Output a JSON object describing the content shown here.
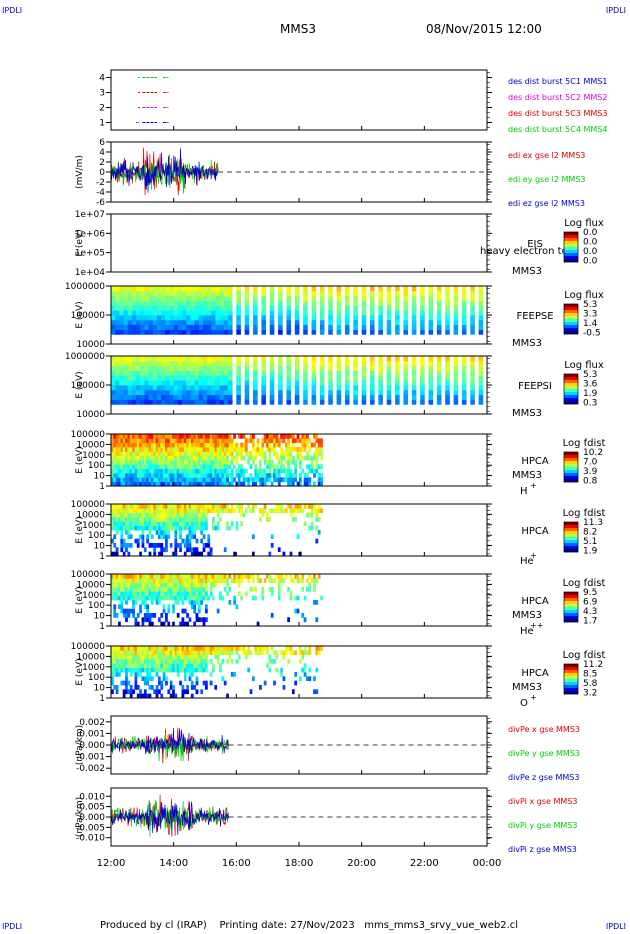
{
  "header": {
    "corner_logo": "IPDLI",
    "spacecraft": "MMS3",
    "datetime": "08/Nov/2015 12:00"
  },
  "footer": {
    "produced_by": "Produced by cl (IRAP)",
    "printing_date": "Printing date: 27/Nov/2023",
    "filename": "mms_mms3_srvy_vue_web2.cl"
  },
  "colors": {
    "mms1": "#0000cc",
    "mms2": "#dd00dd",
    "mms3": "#dd0000",
    "mms4": "#00cc00",
    "x": "#dd0000",
    "y": "#00cc00",
    "z": "#0000cc"
  },
  "time_axis": {
    "start": "2015-11-08T12:00",
    "end": "2015-11-09T00:00",
    "ticks": [
      "12:00",
      "14:00",
      "16:00",
      "18:00",
      "20:00",
      "22:00",
      "00:00"
    ]
  },
  "chart_data": [
    {
      "type": "line",
      "panel": "des dist burst",
      "ylabel": "",
      "ylim": [
        0.5,
        4.5
      ],
      "yticks": [
        "1",
        "2",
        "3",
        "4"
      ],
      "legend": [
        "des dist burst 5C1 MMS1",
        "des dist burst 5C2 MMS2",
        "des dist burst 5C3 MMS3",
        "des dist burst 5C4 MMS4"
      ],
      "legend_colors": [
        "#0000cc",
        "#dd00dd",
        "#dd0000",
        "#00cc00"
      ],
      "series": [
        {
          "name": "des dist burst 5C1 MMS1",
          "level": 1,
          "intervals": [
            [
              "12:48",
              "12:50"
            ],
            [
              "12:52",
              "12:54"
            ],
            [
              "13:00",
              "13:28"
            ],
            [
              "13:40",
              "13:50"
            ]
          ]
        },
        {
          "name": "des dist burst 5C2 MMS2",
          "level": 2,
          "intervals": [
            [
              "12:52",
              "12:56"
            ],
            [
              "13:00",
              "13:28"
            ],
            [
              "13:40",
              "13:50"
            ]
          ]
        },
        {
          "name": "des dist burst 5C3 MMS3",
          "level": 3,
          "intervals": [
            [
              "12:52",
              "12:56"
            ],
            [
              "13:00",
              "13:28"
            ],
            [
              "13:40",
              "13:50"
            ]
          ]
        },
        {
          "name": "des dist burst 5C4 MMS4",
          "level": 4,
          "intervals": [
            [
              "12:52",
              "12:56"
            ],
            [
              "13:00",
              "13:28"
            ],
            [
              "13:40",
              "13:50"
            ]
          ]
        }
      ]
    },
    {
      "type": "line",
      "panel": "edi e gse",
      "ylabel": "(mV/m)",
      "ylim": [
        -6,
        6
      ],
      "yticks": [
        "-6",
        "-4",
        "-2",
        "0",
        "2",
        "4",
        "6"
      ],
      "legend": [
        "edi ex gse l2 MMS3",
        "edi ey gse l2 MMS3",
        "edi ez gse l2 MMS3"
      ],
      "legend_colors": [
        "#dd0000",
        "#00cc00",
        "#0000cc"
      ],
      "data_span": [
        "12:00",
        "15:25"
      ],
      "amplitude": 5.5
    },
    {
      "type": "heatmap",
      "panel": "EIS",
      "ylabel": "E (eV)",
      "yscale": "log",
      "yticks": [
        "1e+04",
        "1e+05",
        "1e+06",
        "1e+07"
      ],
      "instrument": "EIS",
      "spacecraft": "MMS3",
      "overlay_text": "heavy electron to",
      "cbar_title": "Log flux",
      "cbar_ticks": [
        "0.0",
        "0.0",
        "0.0",
        "0.0"
      ],
      "empty": true
    },
    {
      "type": "heatmap",
      "panel": "FEEPSE",
      "ylabel": "E (eV)",
      "yscale": "log",
      "yticks": [
        "10000",
        "100000",
        "1000000"
      ],
      "instrument": "FEEPSE",
      "spacecraft": "MMS3",
      "cbar_title": "Log flux",
      "cbar_ticks": [
        "5.3",
        "3.3",
        "1.4",
        "-0.5"
      ],
      "data_span": [
        "12:00",
        "00:00"
      ]
    },
    {
      "type": "heatmap",
      "panel": "FEEPSI",
      "ylabel": "E (eV)",
      "yscale": "log",
      "yticks": [
        "10000",
        "100000",
        "1000000"
      ],
      "instrument": "FEEPSI",
      "spacecraft": "MMS3",
      "cbar_title": "Log flux",
      "cbar_ticks": [
        "5.3",
        "3.6",
        "1.9",
        "0.3"
      ],
      "data_span": [
        "12:00",
        "00:00"
      ]
    },
    {
      "type": "heatmap",
      "panel": "HPCA H+",
      "ylabel": "E (eV)",
      "yscale": "log",
      "yticks": [
        "1",
        "10",
        "100",
        "1000",
        "10000",
        "100000"
      ],
      "instrument": "HPCA",
      "spacecraft": "MMS3",
      "species": "H",
      "charge": "+",
      "cbar_title": "Log fdist",
      "cbar_ticks": [
        "10.2",
        "7.0",
        "3.9",
        "0.8"
      ],
      "data_span": [
        "12:00",
        "18:45"
      ]
    },
    {
      "type": "heatmap",
      "panel": "HPCA He+",
      "ylabel": "E (eV)",
      "yscale": "log",
      "yticks": [
        "1",
        "10",
        "100",
        "1000",
        "10000",
        "100000"
      ],
      "instrument": "HPCA",
      "spacecraft": "",
      "species": "He",
      "charge": "+",
      "cbar_title": "Log fdist",
      "cbar_ticks": [
        "11.3",
        "8.2",
        "5.1",
        "1.9"
      ],
      "data_span": [
        "12:00",
        "18:45"
      ]
    },
    {
      "type": "heatmap",
      "panel": "HPCA He++",
      "ylabel": "E (eV)",
      "yscale": "log",
      "yticks": [
        "1",
        "10",
        "100",
        "1000",
        "10000",
        "100000"
      ],
      "instrument": "HPCA",
      "spacecraft": "MMS3",
      "species": "He",
      "charge": "++",
      "cbar_title": "Log fdist",
      "cbar_ticks": [
        "9.5",
        "6.9",
        "4.3",
        "1.7"
      ],
      "data_span": [
        "12:00",
        "18:45"
      ]
    },
    {
      "type": "heatmap",
      "panel": "HPCA O+",
      "ylabel": "E (eV)",
      "yscale": "log",
      "yticks": [
        "1",
        "10",
        "100",
        "1000",
        "10000",
        "100000"
      ],
      "instrument": "HPCA",
      "spacecraft": "MMS3",
      "species": "O",
      "charge": "+",
      "cbar_title": "Log fdist",
      "cbar_ticks": [
        "11.2",
        "8.5",
        "5.8",
        "3.2"
      ],
      "data_span": [
        "12:00",
        "18:45"
      ]
    },
    {
      "type": "line",
      "panel": "divPe",
      "ylabel": "(nPa/km)",
      "ylim": [
        -0.0025,
        0.0025
      ],
      "yticks": [
        "-0.002",
        "-0.001",
        "0.000",
        "0.001",
        "0.002"
      ],
      "legend": [
        "divPe x gse MMS3",
        "divPe y gse MMS3",
        "divPe z gse MMS3"
      ],
      "legend_colors": [
        "#dd0000",
        "#00cc00",
        "#0000cc"
      ],
      "data_span": [
        "12:00",
        "15:45"
      ],
      "amplitude": 0.0017
    },
    {
      "type": "line",
      "panel": "divPi",
      "ylabel": "(nPa/km)",
      "ylim": [
        -0.014,
        0.014
      ],
      "yticks": [
        "-0.010",
        "-0.005",
        "0.000",
        "0.005",
        "0.010"
      ],
      "legend": [
        "divPi x gse MMS3",
        "divPi y gse MMS3",
        "divPi z gse MMS3"
      ],
      "legend_colors": [
        "#dd0000",
        "#00cc00",
        "#0000cc"
      ],
      "data_span": [
        "12:00",
        "15:45"
      ],
      "amplitude": 0.011
    }
  ]
}
